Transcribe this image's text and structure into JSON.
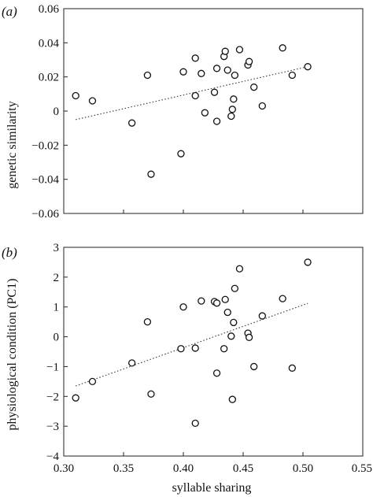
{
  "chart_data": [
    {
      "type": "scatter",
      "panel_label": "(a)",
      "ylabel": "genetic similarity",
      "xlabel": "",
      "xlim": [
        0.3,
        0.55
      ],
      "ylim": [
        -0.06,
        0.06
      ],
      "xticks": [
        "0.30",
        "0.35",
        "0.40",
        "0.45",
        "0.50",
        "0.55"
      ],
      "yticks": [
        "−0.06",
        "−0.04",
        "−0.02",
        "0",
        "0.02",
        "0.04",
        "0.06"
      ],
      "show_xtick_labels": false,
      "points": [
        {
          "x": 0.31,
          "y": 0.009
        },
        {
          "x": 0.324,
          "y": 0.006
        },
        {
          "x": 0.357,
          "y": -0.007
        },
        {
          "x": 0.37,
          "y": 0.021
        },
        {
          "x": 0.373,
          "y": -0.037
        },
        {
          "x": 0.398,
          "y": -0.025
        },
        {
          "x": 0.4,
          "y": 0.023
        },
        {
          "x": 0.41,
          "y": 0.031
        },
        {
          "x": 0.41,
          "y": 0.009
        },
        {
          "x": 0.415,
          "y": 0.022
        },
        {
          "x": 0.418,
          "y": -0.001
        },
        {
          "x": 0.426,
          "y": 0.011
        },
        {
          "x": 0.428,
          "y": 0.025
        },
        {
          "x": 0.428,
          "y": -0.006
        },
        {
          "x": 0.434,
          "y": 0.032
        },
        {
          "x": 0.435,
          "y": 0.035
        },
        {
          "x": 0.437,
          "y": 0.024
        },
        {
          "x": 0.44,
          "y": -0.003
        },
        {
          "x": 0.441,
          "y": 0.001
        },
        {
          "x": 0.442,
          "y": 0.007
        },
        {
          "x": 0.443,
          "y": 0.021
        },
        {
          "x": 0.447,
          "y": 0.036
        },
        {
          "x": 0.454,
          "y": 0.027
        },
        {
          "x": 0.455,
          "y": 0.029
        },
        {
          "x": 0.459,
          "y": 0.014
        },
        {
          "x": 0.466,
          "y": 0.003
        },
        {
          "x": 0.483,
          "y": 0.037
        },
        {
          "x": 0.491,
          "y": 0.021
        },
        {
          "x": 0.504,
          "y": 0.026
        }
      ],
      "trendline": {
        "x": [
          0.31,
          0.504
        ],
        "y": [
          -0.005,
          0.026
        ]
      }
    },
    {
      "type": "scatter",
      "panel_label": "(b)",
      "ylabel": "physiological condition (PC1)",
      "xlabel": "syllable sharing",
      "xlim": [
        0.3,
        0.55
      ],
      "ylim": [
        -4,
        3
      ],
      "xticks": [
        "0.30",
        "0.35",
        "0.40",
        "0.45",
        "0.50",
        "0.55"
      ],
      "yticks": [
        "−4",
        "−3",
        "−2",
        "−1",
        "0",
        "1",
        "2",
        "3"
      ],
      "show_xtick_labels": true,
      "points": [
        {
          "x": 0.31,
          "y": -2.05
        },
        {
          "x": 0.324,
          "y": -1.5
        },
        {
          "x": 0.357,
          "y": -0.88
        },
        {
          "x": 0.37,
          "y": 0.5
        },
        {
          "x": 0.373,
          "y": -1.92
        },
        {
          "x": 0.398,
          "y": -0.4
        },
        {
          "x": 0.4,
          "y": 1.0
        },
        {
          "x": 0.41,
          "y": -2.9
        },
        {
          "x": 0.41,
          "y": -0.38
        },
        {
          "x": 0.415,
          "y": 1.2
        },
        {
          "x": 0.426,
          "y": 1.18
        },
        {
          "x": 0.428,
          "y": 1.13
        },
        {
          "x": 0.428,
          "y": -1.22
        },
        {
          "x": 0.434,
          "y": -0.4
        },
        {
          "x": 0.435,
          "y": 1.25
        },
        {
          "x": 0.437,
          "y": 0.82
        },
        {
          "x": 0.44,
          "y": 0.02
        },
        {
          "x": 0.441,
          "y": -2.1
        },
        {
          "x": 0.442,
          "y": 0.48
        },
        {
          "x": 0.443,
          "y": 1.62
        },
        {
          "x": 0.447,
          "y": 2.28
        },
        {
          "x": 0.454,
          "y": 0.12
        },
        {
          "x": 0.455,
          "y": -0.02
        },
        {
          "x": 0.459,
          "y": -1.0
        },
        {
          "x": 0.466,
          "y": 0.7
        },
        {
          "x": 0.483,
          "y": 1.28
        },
        {
          "x": 0.491,
          "y": -1.05
        },
        {
          "x": 0.504,
          "y": 2.5
        }
      ],
      "trendline": {
        "x": [
          0.31,
          0.504
        ],
        "y": [
          -1.65,
          1.12
        ]
      }
    }
  ]
}
